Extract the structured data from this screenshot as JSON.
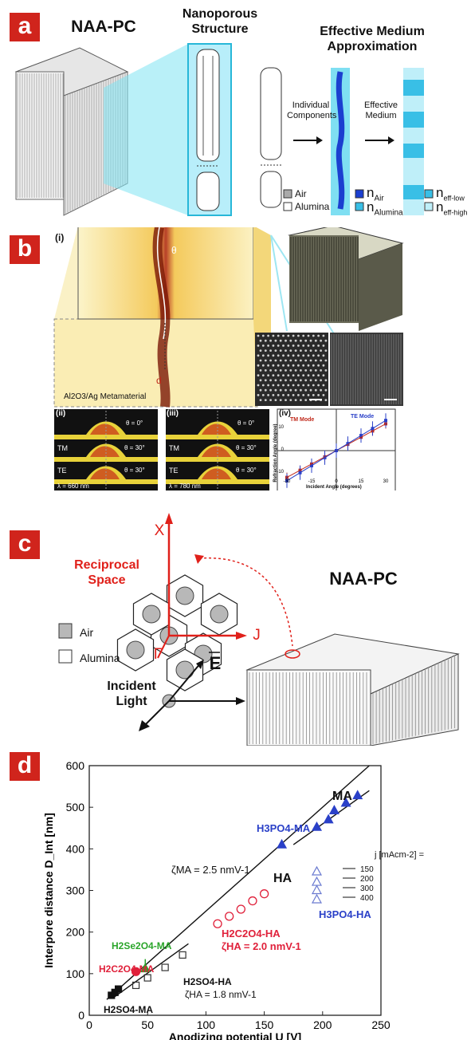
{
  "panel_a": {
    "tag": "a",
    "title_left": "NAA-PC",
    "title_mid": "Nanoporous Structure",
    "title_right": "Effective Medium Approximation",
    "arrow1_label": "Individual Components",
    "arrow2_label": "Effective Medium",
    "legend_air": "Air",
    "legend_alumina": "Alumina",
    "legend_nair": "n",
    "legend_nair_sub": "Air",
    "legend_nalumina": "n",
    "legend_nalumina_sub": "Alumina",
    "legend_neffl": "n",
    "legend_neffl_sub": "eff-low",
    "legend_neffh": "n",
    "legend_neffh_sub": "eff-high"
  },
  "panel_b": {
    "tag": "b",
    "sub_i": "(i)",
    "theta": "θ",
    "d": "d",
    "material": "Al2O3/Ag Metamaterial",
    "sub_ii": "(ii)",
    "sub_iii": "(iii)",
    "sub_iv": "(iv)",
    "theta0": "θ = 0°",
    "theta30a": "θ = 30°",
    "theta30b": "θ = 30°",
    "tm": "TM",
    "te": "TE",
    "lambda_ii": "λ = 660 nm",
    "lambda_iii": "λ = 780 nm",
    "iv_ylabel": "Refraction Angle (degree)",
    "iv_xlabel": "Incident Angle (degrees)",
    "iv_tm": "TM Mode",
    "iv_te": "TE Mode",
    "iv_xticks": [
      "-30",
      "-15",
      "0",
      "15",
      "30"
    ],
    "iv_yticks": [
      "10",
      "0",
      "-10"
    ]
  },
  "panel_c": {
    "tag": "c",
    "x_label": "X",
    "j_label": "J",
    "gamma_label": "Γ",
    "reciprocal": "Reciprocal Space",
    "title": "NAA-PC",
    "air": "Air",
    "alumina": "Alumina",
    "incident": "Incident Light",
    "e_field": "E"
  },
  "panel_d": {
    "tag": "d",
    "chart_data": {
      "type": "scatter",
      "xlabel": "Anodizing potential U [V]",
      "ylabel": "Interpore distance D_Int [nm]",
      "xlim": [
        0,
        250
      ],
      "ylim": [
        0,
        600
      ],
      "xticks": [
        0,
        50,
        100,
        150,
        200,
        250
      ],
      "yticks": [
        0,
        100,
        200,
        300,
        400,
        500,
        600
      ],
      "series": [
        {
          "name": "H2SO4-MA",
          "marker": "filled-square",
          "color": "#111111",
          "x": [
            19,
            22,
            25
          ],
          "y": [
            48,
            55,
            63
          ]
        },
        {
          "name": "H2SO4-HA",
          "marker": "open-square",
          "color": "#333333",
          "x": [
            40,
            50,
            65,
            80
          ],
          "y": [
            72,
            90,
            115,
            145
          ]
        },
        {
          "name": "H2C2O4-MA",
          "marker": "filled-circle",
          "color": "#e0203a",
          "x": [
            40
          ],
          "y": [
            105
          ]
        },
        {
          "name": "H2Se2O4-MA",
          "marker": "filled-triangle",
          "color": "#2aa52a",
          "x": [
            48
          ],
          "y": [
            112
          ]
        },
        {
          "name": "H2C2O4-HA",
          "marker": "open-circle",
          "color": "#e0203a",
          "x": [
            110,
            120,
            130,
            140,
            150
          ],
          "y": [
            220,
            238,
            255,
            275,
            292
          ]
        },
        {
          "name": "H3PO4-MA",
          "marker": "filled-triangle",
          "color": "#2a40c8",
          "x": [
            165,
            195,
            205,
            210,
            220,
            230
          ],
          "y": [
            410,
            452,
            470,
            492,
            510,
            528
          ]
        },
        {
          "name": "H3PO4-HA",
          "marker": "open-triangle",
          "color": "#6a7ad0",
          "x": [
            195,
            195,
            195,
            195
          ],
          "y": [
            345,
            320,
            300,
            278
          ]
        }
      ],
      "lines": [
        {
          "name": "MA",
          "x": [
            15,
            240
          ],
          "y": [
            38,
            600
          ]
        },
        {
          "name": "HA",
          "x": [
            22,
            85
          ],
          "y": [
            45,
            172
          ]
        },
        {
          "name": "MA-PO",
          "x": [
            175,
            240
          ],
          "y": [
            410,
            540
          ]
        }
      ],
      "annotations": {
        "ma": "MA",
        "ha": "HA",
        "h3po4_ma": "H3PO4-MA",
        "h3po4_ha": "H3PO4-HA",
        "zeta_ma": "ζMA = 2.5 nmV-1",
        "zeta_ha_ox": "ζHA = 2.0 nmV-1",
        "zeta_ha_s": "ζHA = 1.8 nmV-1",
        "h2c2o4_ha": "H2C2O4-HA",
        "h2se2o4_ma": "H2Se2O4-MA",
        "h2c2o4_ma": "H2C2O4-MA",
        "h2so4_ha": "H2SO4-HA",
        "h2so4_ma": "H2SO4-MA",
        "j_header": "j [mAcm-2] =",
        "j_values": [
          "150",
          "200",
          "300",
          "400"
        ]
      }
    }
  }
}
